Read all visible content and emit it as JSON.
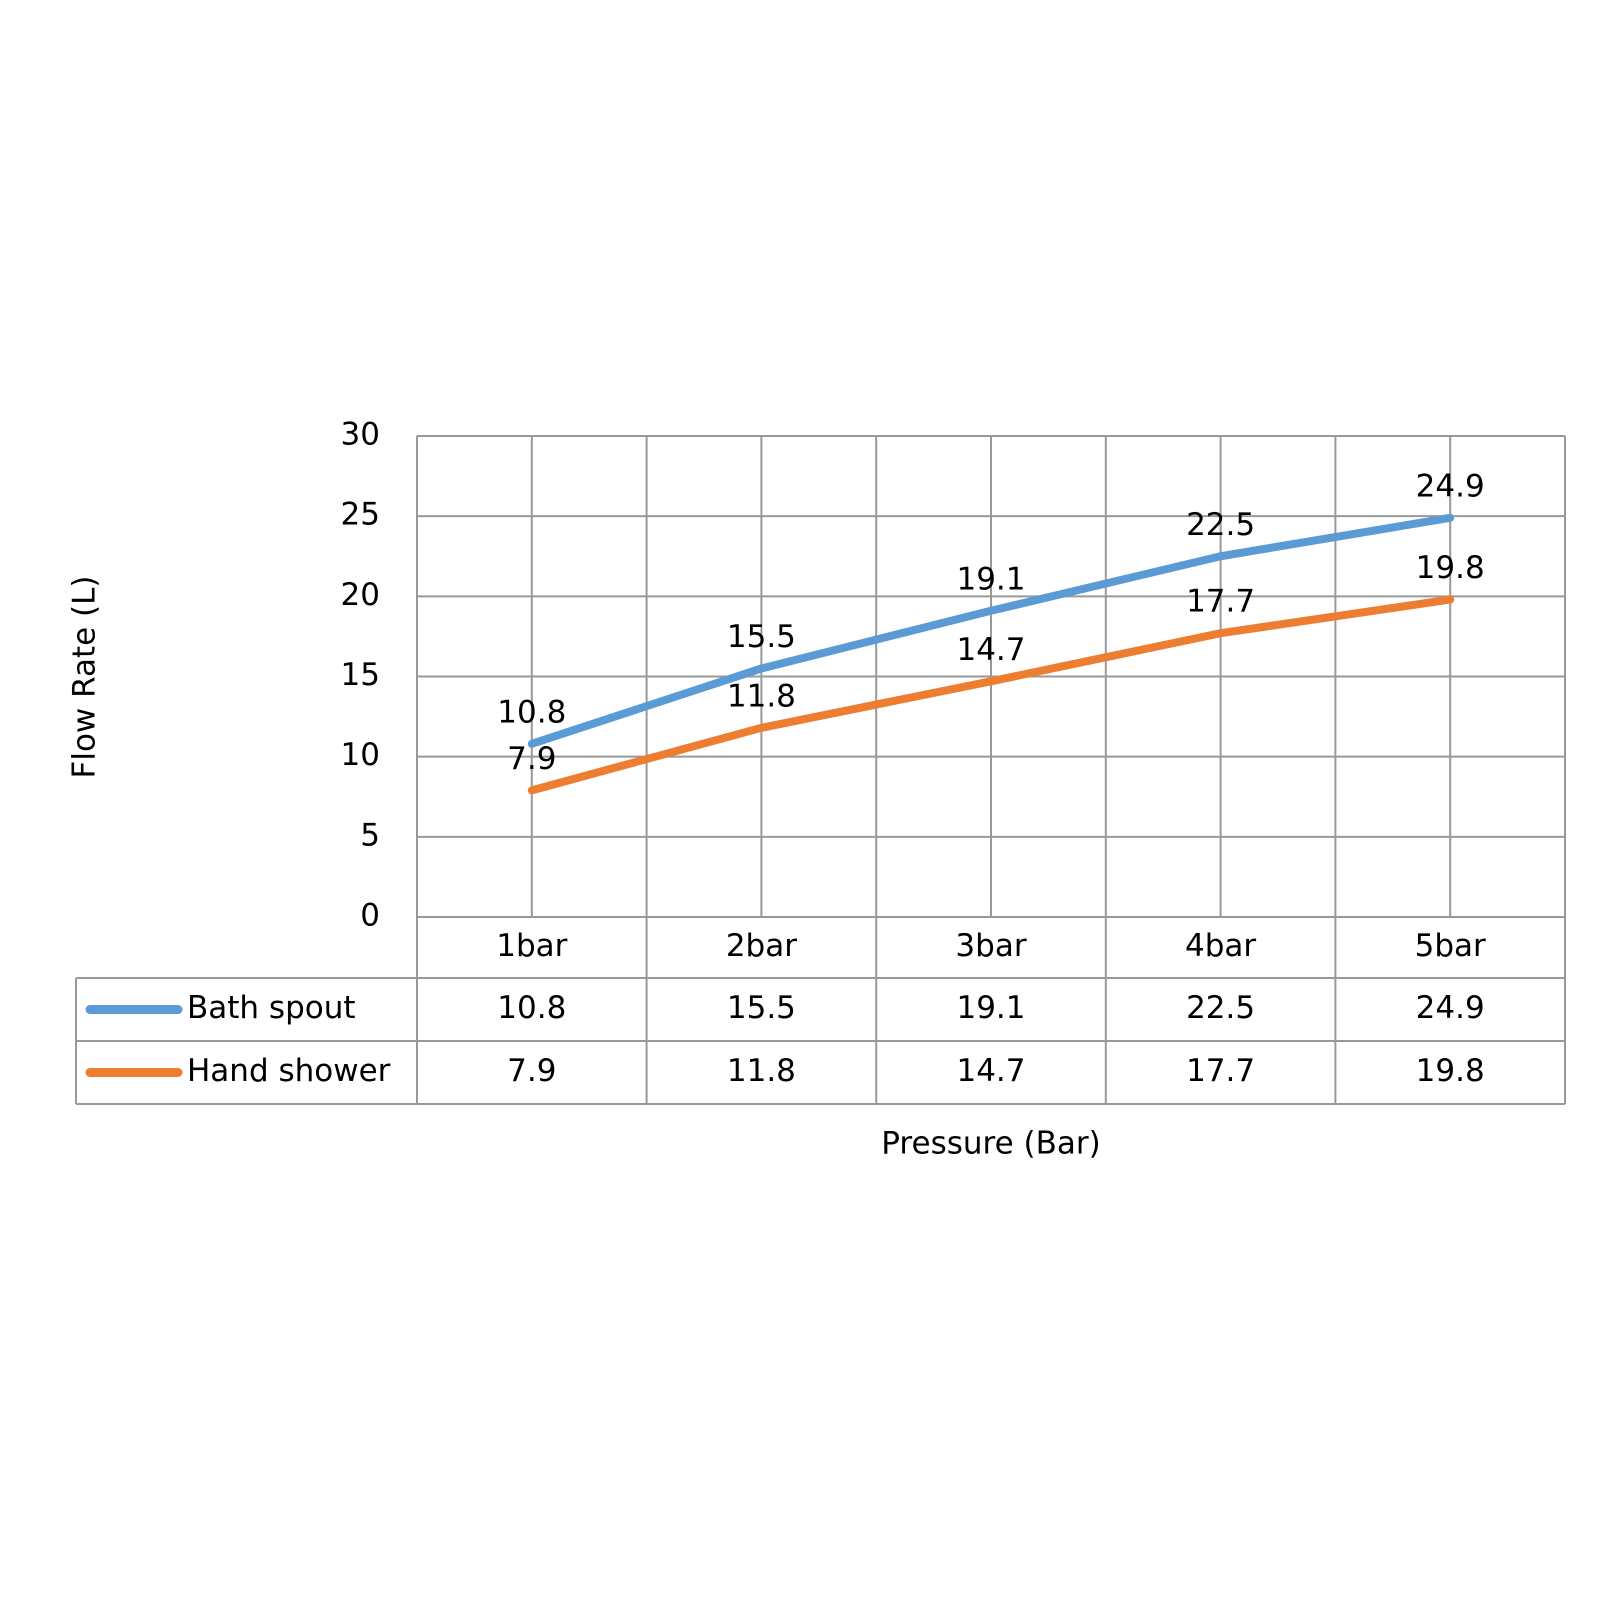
{
  "chart_data": {
    "type": "line",
    "x_label": "Pressure (Bar)",
    "y_label": "Flow Rate (L)",
    "categories": [
      "1bar",
      "2bar",
      "3bar",
      "4bar",
      "5bar"
    ],
    "series": [
      {
        "name": "Bath spout",
        "color": "#5b9bd5",
        "values": [
          10.8,
          15.5,
          19.1,
          22.5,
          24.9
        ]
      },
      {
        "name": "Hand shower",
        "color": "#ed7d31",
        "values": [
          7.9,
          11.8,
          14.7,
          17.7,
          19.8
        ]
      }
    ],
    "ylim": [
      0,
      30
    ],
    "yticks": [
      0,
      5,
      10,
      15,
      20,
      25,
      30
    ],
    "grid": true,
    "data_table": true
  }
}
